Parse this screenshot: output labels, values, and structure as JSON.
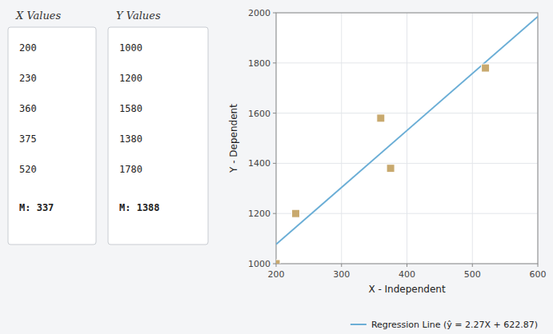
{
  "chart_data": {
    "type": "scatter",
    "x_label": "X - Independent",
    "y_label": "Y - Dependent",
    "annotations": [
      "X Values",
      "Y Values",
      "M: 337",
      "M: 1388"
    ],
    "series": [
      {
        "type": "scatter",
        "marker": "square",
        "color": "#C8A96E",
        "x": [
          200,
          230,
          360,
          375,
          520
        ],
        "values": [
          1000,
          1200,
          1580,
          1380,
          1780
        ]
      },
      {
        "type": "line",
        "name": "Regression Line (ŷ = 2.27X + 622.87)",
        "color": "#6BAED6",
        "line_style": "solid",
        "x": [
          200,
          600
        ],
        "values": [
          1076.87,
          1984.87
        ]
      }
    ],
    "xlim": [
      200,
      600
    ],
    "ylim": [
      1000,
      2000
    ],
    "xticks": [
      200,
      300,
      400,
      500,
      600
    ],
    "yticks": [
      1000,
      1200,
      1400,
      1600,
      1800,
      2000
    ],
    "grid": true,
    "legend": "lower right"
  }
}
